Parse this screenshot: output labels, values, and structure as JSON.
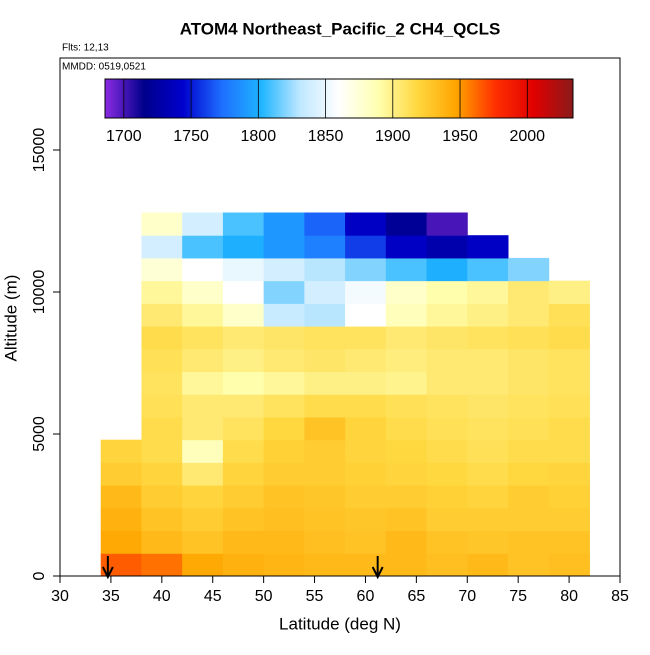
{
  "chart_data": {
    "type": "heatmap",
    "title": "ATOM4 Northeast_Pacific_2 CH4_QCLS",
    "annotations": [
      "Flts: 12,13",
      "MMDD: 0519,0521"
    ],
    "x_label": "Latitude (deg N)",
    "y_label": "Altitude (m)",
    "xlim": [
      30,
      85
    ],
    "ylim": [
      0,
      18240
    ],
    "xticks": [
      30,
      35,
      40,
      45,
      50,
      55,
      60,
      65,
      70,
      75,
      80,
      85
    ],
    "yticks": [
      0,
      5000,
      10000,
      15000
    ],
    "x_bins": [
      34,
      38,
      42,
      46,
      50,
      54,
      58,
      62,
      66,
      70,
      74,
      78,
      82
    ],
    "y_bins": [
      0,
      800,
      1600,
      2400,
      3200,
      4000,
      4800,
      5600,
      6400,
      7200,
      8000,
      8800,
      9600,
      10400,
      11200,
      12000,
      12800
    ],
    "z": [
      [
        1965,
        1960,
        1945,
        1940,
        1938,
        1935,
        1935,
        1935,
        1932,
        1935,
        1930,
        1932
      ],
      [
        1945,
        1935,
        1930,
        1935,
        1935,
        1932,
        1930,
        1935,
        1930,
        1928,
        1930,
        1930
      ],
      [
        1940,
        1930,
        1925,
        1930,
        1932,
        1930,
        1928,
        1930,
        1925,
        1925,
        1925,
        1925
      ],
      [
        1935,
        1925,
        1920,
        1925,
        1930,
        1928,
        1925,
        1925,
        1922,
        1920,
        1925,
        1922
      ],
      [
        1925,
        1920,
        1905,
        1920,
        1925,
        1925,
        1922,
        1920,
        1918,
        1915,
        1918,
        1920
      ],
      [
        1920,
        1915,
        1885,
        1915,
        1922,
        1925,
        1920,
        1918,
        1915,
        1912,
        1915,
        1915
      ],
      [
        null,
        1915,
        1905,
        1910,
        1918,
        1930,
        1920,
        1915,
        1912,
        1910,
        1912,
        1915
      ],
      [
        null,
        1912,
        1905,
        1905,
        1910,
        1915,
        1915,
        1912,
        1910,
        1908,
        1910,
        1912
      ],
      [
        null,
        1910,
        1895,
        1890,
        1895,
        1900,
        1900,
        1898,
        1905,
        1905,
        1908,
        1910
      ],
      [
        null,
        1912,
        1905,
        1900,
        1905,
        1908,
        1905,
        1902,
        1905,
        1905,
        1908,
        1910
      ],
      [
        null,
        1915,
        1910,
        1905,
        1908,
        1910,
        1910,
        1905,
        1908,
        1910,
        1912,
        1915
      ],
      [
        null,
        1905,
        1895,
        1880,
        1835,
        1830,
        1860,
        1885,
        1895,
        1900,
        1905,
        1912
      ],
      [
        null,
        1895,
        1880,
        1860,
        1820,
        1840,
        1855,
        1880,
        1890,
        1895,
        1905,
        1900
      ],
      [
        null,
        1875,
        1860,
        1850,
        1840,
        1830,
        1820,
        1810,
        1800,
        1810,
        1820,
        null
      ],
      [
        null,
        1840,
        1810,
        1800,
        1790,
        1780,
        1760,
        1740,
        1730,
        1740,
        null,
        null
      ],
      [
        null,
        1880,
        1840,
        1810,
        1790,
        1770,
        1740,
        1720,
        1700,
        null,
        null,
        null
      ]
    ],
    "colorbar": {
      "lim": [
        1686,
        2034
      ],
      "ticks": [
        1700,
        1750,
        1800,
        1850,
        1900,
        1950,
        2000
      ],
      "colors": [
        "#8b2be2",
        "#00008b",
        "#0000cd",
        "#1e6fff",
        "#1eb4ff",
        "#bfe8ff",
        "#ffffff",
        "#ffffb0",
        "#ffd840",
        "#ffa500",
        "#ff3000",
        "#e00000",
        "#8b1a1a"
      ]
    },
    "arrows_x": [
      34.7,
      61.2
    ]
  }
}
